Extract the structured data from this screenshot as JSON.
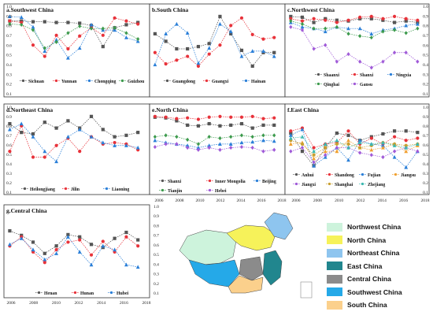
{
  "chart_data": [
    {
      "type": "line",
      "title": "a.Southwest China",
      "x": [
        2006,
        2007,
        2008,
        2009,
        2010,
        2011,
        2012,
        2013,
        2014,
        2015,
        2016,
        2017
      ],
      "ylim": [
        0.1,
        1.0
      ],
      "series": [
        {
          "name": "Sichuan",
          "color": "#555555",
          "marker": "square",
          "values": [
            0.92,
            0.92,
            0.91,
            0.91,
            0.9,
            0.9,
            0.89,
            0.86,
            0.58,
            0.83,
            0.87,
            0.9
          ]
        },
        {
          "name": "Yunnan",
          "color": "#e8323a",
          "marker": "circle",
          "values": [
            0.92,
            0.9,
            0.6,
            0.45,
            0.73,
            0.55,
            0.72,
            0.83,
            0.73,
            0.96,
            0.92,
            0.88
          ]
        },
        {
          "name": "Chongqing",
          "color": "#2a7fd8",
          "marker": "triangle",
          "values": [
            0.98,
            0.97,
            0.84,
            0.52,
            0.67,
            0.43,
            0.56,
            0.87,
            0.8,
            0.8,
            0.7,
            0.65
          ]
        },
        {
          "name": "Guizhou",
          "color": "#3c9a4c",
          "marker": "diamond",
          "values": [
            0.88,
            0.87,
            0.8,
            0.56,
            0.64,
            0.76,
            0.85,
            0.82,
            0.82,
            0.83,
            0.76,
            0.68
          ]
        }
      ]
    },
    {
      "type": "line",
      "title": "b.South China",
      "x": [
        2006,
        2007,
        2008,
        2009,
        2010,
        2011,
        2012,
        2013,
        2014,
        2015,
        2016,
        2017
      ],
      "ylim": [
        0.1,
        1.0
      ],
      "series": [
        {
          "name": "Guangdong",
          "color": "#555555",
          "marker": "square",
          "values": [
            0.75,
            0.65,
            0.55,
            0.55,
            0.58,
            0.62,
            0.98,
            0.75,
            0.53,
            0.32,
            0.5,
            0.5
          ]
        },
        {
          "name": "Guangxi",
          "color": "#e8323a",
          "marker": "circle",
          "values": [
            0.5,
            0.35,
            0.4,
            0.45,
            0.32,
            0.48,
            0.6,
            0.86,
            0.96,
            0.74,
            0.68,
            0.7
          ]
        },
        {
          "name": "Hainan",
          "color": "#2a7fd8",
          "marker": "triangle",
          "values": [
            0.34,
            0.75,
            0.88,
            0.76,
            0.36,
            0.56,
            0.88,
            0.78,
            0.45,
            0.52,
            0.52,
            0.45
          ]
        }
      ]
    },
    {
      "type": "line",
      "title": "c.Northwest China",
      "x": [
        2006,
        2007,
        2008,
        2009,
        2010,
        2011,
        2012,
        2013,
        2014,
        2015,
        2016,
        2017
      ],
      "ylim": [
        0.1,
        1.0
      ],
      "series": [
        {
          "name": "Shaanxi",
          "color": "#555555",
          "marker": "square",
          "values": [
            0.98,
            0.97,
            0.9,
            0.95,
            0.93,
            0.92,
            0.95,
            0.95,
            0.93,
            0.9,
            0.92,
            0.9
          ]
        },
        {
          "name": "Shanxi",
          "color": "#e8323a",
          "marker": "circle",
          "values": [
            0.95,
            0.92,
            0.95,
            0.93,
            0.9,
            0.93,
            0.97,
            0.98,
            0.95,
            0.98,
            0.95,
            0.93
          ]
        },
        {
          "name": "Ningxia",
          "color": "#2a7fd8",
          "marker": "triangle",
          "values": [
            0.9,
            0.84,
            0.82,
            0.78,
            0.84,
            0.82,
            0.82,
            0.75,
            0.8,
            0.82,
            0.86,
            0.88
          ]
        },
        {
          "name": "Qinghai",
          "color": "#3c9a4c",
          "marker": "diamond",
          "values": [
            0.92,
            0.88,
            0.82,
            0.82,
            0.84,
            0.75,
            0.72,
            0.7,
            0.78,
            0.8,
            0.76,
            0.82
          ]
        },
        {
          "name": "Gansu",
          "color": "#a05ad8",
          "marker": "diamond",
          "values": [
            0.84,
            0.8,
            0.55,
            0.6,
            0.38,
            0.48,
            0.38,
            0.3,
            0.38,
            0.5,
            0.5,
            0.38
          ]
        }
      ]
    },
    {
      "type": "line",
      "title": "d.Northeast China",
      "x": [
        2006,
        2007,
        2008,
        2009,
        2010,
        2011,
        2012,
        2013,
        2014,
        2015,
        2016,
        2017
      ],
      "ylim": [
        0.1,
        1.0
      ],
      "series": [
        {
          "name": "Heilongjiang",
          "color": "#555555",
          "marker": "square",
          "values": [
            0.88,
            0.76,
            0.74,
            0.9,
            0.82,
            0.92,
            0.82,
            0.98,
            0.8,
            0.7,
            0.72,
            0.76
          ]
        },
        {
          "name": "Jilin",
          "color": "#e8323a",
          "marker": "circle",
          "values": [
            0.5,
            0.85,
            0.42,
            0.42,
            0.58,
            0.68,
            0.5,
            0.7,
            0.6,
            0.62,
            0.6,
            0.52
          ]
        },
        {
          "name": "Liaoning",
          "color": "#2a7fd8",
          "marker": "triangle",
          "values": [
            0.8,
            0.88,
            0.7,
            0.5,
            0.36,
            0.7,
            0.8,
            0.7,
            0.62,
            0.58,
            0.58,
            0.55
          ]
        }
      ]
    },
    {
      "type": "line",
      "title": "e.North China",
      "x": [
        2006,
        2007,
        2008,
        2009,
        2010,
        2011,
        2012,
        2013,
        2014,
        2015,
        2016,
        2017
      ],
      "ylim": [
        0.1,
        1.0
      ],
      "series": [
        {
          "name": "Shanxi",
          "color": "#555555",
          "marker": "square",
          "values": [
            0.97,
            0.96,
            0.92,
            0.86,
            0.85,
            0.88,
            0.85,
            0.86,
            0.88,
            0.82,
            0.86,
            0.86
          ]
        },
        {
          "name": "Inner Mongolia",
          "color": "#e8323a",
          "marker": "circle",
          "values": [
            0.98,
            0.97,
            0.95,
            0.96,
            0.94,
            0.97,
            0.98,
            0.97,
            0.97,
            0.98,
            0.95,
            0.96
          ]
        },
        {
          "name": "Beijing",
          "color": "#2a7fd8",
          "marker": "triangle",
          "values": [
            0.65,
            0.62,
            0.6,
            0.58,
            0.55,
            0.58,
            0.6,
            0.6,
            0.62,
            0.63,
            0.65,
            0.64
          ]
        },
        {
          "name": "Tianjin",
          "color": "#3c9a4c",
          "marker": "diamond",
          "values": [
            0.7,
            0.72,
            0.7,
            0.66,
            0.6,
            0.7,
            0.68,
            0.7,
            0.72,
            0.7,
            0.72,
            0.72
          ]
        },
        {
          "name": "Hebei",
          "color": "#a05ad8",
          "marker": "diamond",
          "values": [
            0.56,
            0.6,
            0.6,
            0.55,
            0.52,
            0.55,
            0.52,
            0.55,
            0.56,
            0.55,
            0.5,
            0.52
          ]
        }
      ]
    },
    {
      "type": "line",
      "title": "f.East China",
      "x": [
        2006,
        2007,
        2008,
        2009,
        2010,
        2011,
        2012,
        2013,
        2014,
        2015,
        2016,
        2017
      ],
      "ylim": [
        0.1,
        1.0
      ],
      "series": [
        {
          "name": "Anhui",
          "color": "#555555",
          "marker": "square",
          "values": [
            0.75,
            0.5,
            0.3,
            0.55,
            0.75,
            0.72,
            0.65,
            0.7,
            0.74,
            0.78,
            0.78,
            0.76
          ]
        },
        {
          "name": "Shandong",
          "color": "#e8323a",
          "marker": "circle",
          "values": [
            0.78,
            0.82,
            0.55,
            0.6,
            0.62,
            0.78,
            0.6,
            0.68,
            0.6,
            0.7,
            0.65,
            0.68
          ]
        },
        {
          "name": "Fujian",
          "color": "#2a7fd8",
          "marker": "triangle",
          "values": [
            0.72,
            0.8,
            0.3,
            0.42,
            0.55,
            0.38,
            0.65,
            0.6,
            0.58,
            0.42,
            0.28,
            0.5
          ]
        },
        {
          "name": "Jiangsu",
          "color": "#f0a030",
          "marker": "triangle",
          "values": [
            0.6,
            0.62,
            0.4,
            0.5,
            0.5,
            0.65,
            0.55,
            0.52,
            0.55,
            0.6,
            0.5,
            0.58
          ]
        },
        {
          "name": "Jiangxi",
          "color": "#a05ad8",
          "marker": "diamond",
          "values": [
            0.5,
            0.55,
            0.35,
            0.45,
            0.55,
            0.55,
            0.48,
            0.45,
            0.42,
            0.5,
            0.55,
            0.5
          ]
        },
        {
          "name": "Shanghai",
          "color": "#c8a030",
          "marker": "circle",
          "values": [
            0.65,
            0.6,
            0.45,
            0.55,
            0.6,
            0.6,
            0.55,
            0.58,
            0.62,
            0.6,
            0.58,
            0.6
          ]
        },
        {
          "name": "Zhejiang",
          "color": "#3cb8b0",
          "marker": "triangle",
          "values": [
            0.68,
            0.7,
            0.5,
            0.6,
            0.65,
            0.55,
            0.62,
            0.6,
            0.62,
            0.58,
            0.55,
            0.6
          ]
        }
      ]
    },
    {
      "type": "line",
      "title": "g.Central China",
      "x": [
        2006,
        2007,
        2008,
        2009,
        2010,
        2011,
        2012,
        2013,
        2014,
        2015,
        2016,
        2017
      ],
      "ylim": [
        0.1,
        1.0
      ],
      "series": [
        {
          "name": "Henan",
          "color": "#555555",
          "marker": "square",
          "values": [
            0.8,
            0.74,
            0.65,
            0.5,
            0.6,
            0.75,
            0.72,
            0.62,
            0.58,
            0.7,
            0.78,
            0.68
          ]
        },
        {
          "name": "Hunan",
          "color": "#e8323a",
          "marker": "circle",
          "values": [
            0.6,
            0.72,
            0.52,
            0.38,
            0.55,
            0.65,
            0.68,
            0.48,
            0.66,
            0.52,
            0.72,
            0.6
          ]
        },
        {
          "name": "Hubei",
          "color": "#2a7fd8",
          "marker": "triangle",
          "values": [
            0.62,
            0.7,
            0.55,
            0.42,
            0.5,
            0.72,
            0.52,
            0.35,
            0.6,
            0.55,
            0.35,
            0.32
          ]
        }
      ]
    }
  ],
  "axes": {
    "y_ticks": [
      "1.0",
      "0.9",
      "0.8",
      "0.7",
      "0.6",
      "0.5",
      "0.4",
      "0.3",
      "0.2",
      "0.1"
    ],
    "x_ticks": [
      "2006",
      "2008",
      "2010",
      "2012",
      "2014",
      "2016",
      "2018"
    ]
  },
  "map_legend": [
    {
      "label": "Northwest China",
      "color": "#cdf3dc"
    },
    {
      "label": "North China",
      "color": "#f6f25a"
    },
    {
      "label": "Northeast China",
      "color": "#8ec5ef"
    },
    {
      "label": "East China",
      "color": "#21868e"
    },
    {
      "label": "Central China",
      "color": "#8b8b8b"
    },
    {
      "label": "Southwest China",
      "color": "#25a9e8"
    },
    {
      "label": "South China",
      "color": "#fbd08c"
    }
  ]
}
